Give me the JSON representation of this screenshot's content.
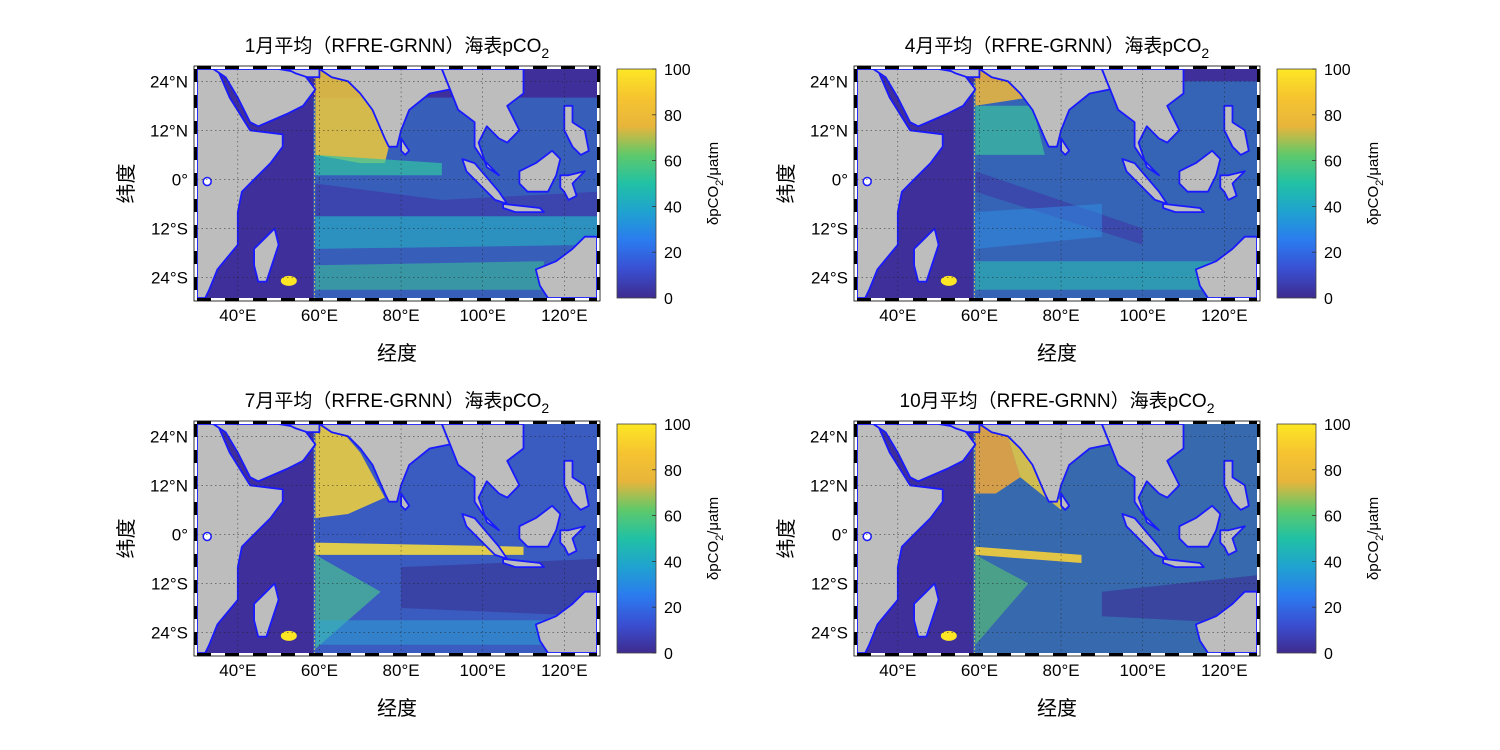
{
  "figure": {
    "panels": [
      {
        "title": "1月平均（RFRE-GRNN）海表pCO",
        "title_sub": "2",
        "variant": 0,
        "x_ticks": [
          "40°E",
          "60°E",
          "80°E",
          "100°E",
          "120°E"
        ],
        "y_ticks": [
          "24°N",
          "12°N",
          "0°",
          "12°S",
          "24°S"
        ],
        "xlabel": "经度",
        "ylabel": "纬度",
        "colorbar": {
          "ticks": [
            "100",
            "80",
            "60",
            "40",
            "20",
            "0"
          ],
          "label_prefix": "δpCO",
          "label_sub": "2",
          "label_suffix": "/μatm"
        }
      },
      {
        "title": "4月平均（RFRE-GRNN）海表pCO",
        "title_sub": "2",
        "variant": 1,
        "x_ticks": [
          "40°E",
          "60°E",
          "80°E",
          "100°E",
          "120°E"
        ],
        "y_ticks": [
          "24°N",
          "12°N",
          "0°",
          "12°S",
          "24°S"
        ],
        "xlabel": "经度",
        "ylabel": "纬度",
        "colorbar": {
          "ticks": [
            "100",
            "80",
            "60",
            "40",
            "20",
            "0"
          ],
          "label_prefix": "δpCO",
          "label_sub": "2",
          "label_suffix": "/μatm"
        }
      },
      {
        "title": "7月平均（RFRE-GRNN）海表pCO",
        "title_sub": "2",
        "variant": 2,
        "x_ticks": [
          "40°E",
          "60°E",
          "80°E",
          "100°E",
          "120°E"
        ],
        "y_ticks": [
          "24°N",
          "12°N",
          "0°",
          "12°S",
          "24°S"
        ],
        "xlabel": "经度",
        "ylabel": "纬度",
        "colorbar": {
          "ticks": [
            "100",
            "80",
            "60",
            "40",
            "20",
            "0"
          ],
          "label_prefix": "δpCO",
          "label_sub": "2",
          "label_suffix": "/μatm"
        }
      },
      {
        "title": "10月平均（RFRE-GRNN）海表pCO",
        "title_sub": "2",
        "variant": 3,
        "x_ticks": [
          "40°E",
          "60°E",
          "80°E",
          "100°E",
          "120°E"
        ],
        "y_ticks": [
          "24°N",
          "12°N",
          "0°",
          "12°S",
          "24°S"
        ],
        "xlabel": "经度",
        "ylabel": "纬度",
        "colorbar": {
          "ticks": [
            "100",
            "80",
            "60",
            "40",
            "20",
            "0"
          ],
          "label_prefix": "δpCO",
          "label_sub": "2",
          "label_suffix": "/μatm"
        }
      }
    ],
    "colors": {
      "land": "#bdbdbd",
      "coast": "#1a1aff",
      "low": "#3e2f9b",
      "cbar_stops": [
        "#fde725",
        "#f6c430",
        "#e8b53b",
        "#5fc96a",
        "#21c1a5",
        "#1fa2d0",
        "#2b7bef",
        "#3a4fd2",
        "#3e2b8f"
      ]
    }
  }
}
